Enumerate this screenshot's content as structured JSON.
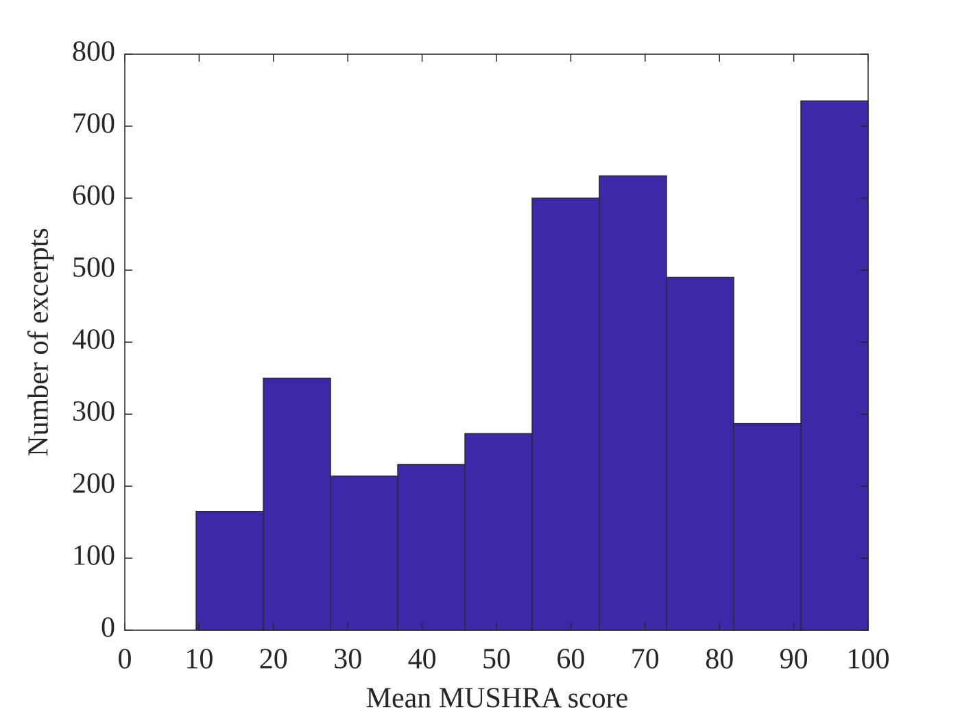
{
  "chart_data": {
    "type": "histogram",
    "xlabel": "Mean MUSHRA score",
    "ylabel": "Number of excerpts",
    "bins": [
      9.6,
      18.64,
      27.68,
      36.72,
      45.76,
      54.8,
      63.84,
      72.88,
      81.92,
      90.96,
      100
    ],
    "values": [
      165,
      350,
      214,
      230,
      273,
      600,
      631,
      490,
      287,
      735
    ],
    "color": "#3c28a8",
    "edgecolor": "#2a2a2a",
    "xlim": [
      0,
      100
    ],
    "xticks": [
      0,
      10,
      20,
      30,
      40,
      50,
      60,
      70,
      80,
      90,
      100
    ],
    "ylim": [
      0,
      800
    ],
    "yticks": [
      0,
      100,
      200,
      300,
      400,
      500,
      600,
      700,
      800
    ],
    "grid": false
  }
}
